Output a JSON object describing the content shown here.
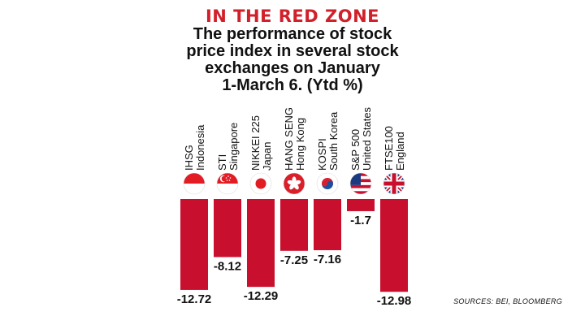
{
  "kicker": "IN THE RED ZONE",
  "title_lines": [
    "The performance of stock",
    "price index in several stock",
    "exchanges on January",
    "1-March 6. (Ytd %)"
  ],
  "source": "SOURCES: BEI, BLOOMBERG",
  "colors": {
    "bar": "#c8102e",
    "kicker": "#d1202a",
    "text": "#111111"
  },
  "chart_data": {
    "type": "bar",
    "categories": [
      {
        "index": "IHSG",
        "country": "Indonesia",
        "flag": "indonesia-flag-icon"
      },
      {
        "index": "STI",
        "country": "Singapore",
        "flag": "singapore-flag-icon"
      },
      {
        "index": "NIKKEI 225",
        "country": "Japan",
        "flag": "japan-flag-icon"
      },
      {
        "index": "HANG SENG",
        "country": "Hong Kong",
        "flag": "hong-kong-flag-icon"
      },
      {
        "index": "KOSPI",
        "country": "South Korea",
        "flag": "south-korea-flag-icon"
      },
      {
        "index": "S&P 500",
        "country": "United States",
        "flag": "united-states-flag-icon"
      },
      {
        "index": "FTSE100",
        "country": "England",
        "flag": "united-kingdom-flag-icon"
      }
    ],
    "values": [
      -12.72,
      -8.12,
      -12.29,
      -7.25,
      -7.16,
      -1.7,
      -12.98
    ],
    "value_labels": [
      "-12.72",
      "-8.12",
      "-12.29",
      "-7.25",
      "-7.16",
      "-1.7",
      "-12.98"
    ],
    "ylim": [
      -12.98,
      0
    ],
    "grid": false,
    "legend": "none"
  }
}
